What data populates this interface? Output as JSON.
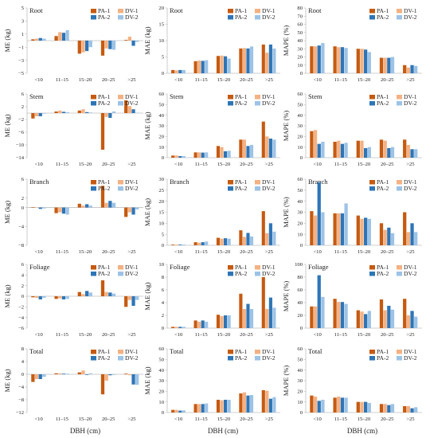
{
  "figure": {
    "x_axis_title": "DBH (cm)"
  },
  "legend_labels": [
    "PA-1",
    "DV-1",
    "PA-2",
    "DV-2"
  ],
  "colors": {
    "PA-1": "#c55a11",
    "DV-1": "#f4b183",
    "PA-2": "#2e75b6",
    "DV-2": "#9dc3e6",
    "axis": "#bfbfbf",
    "text": "#222222"
  },
  "chart_data": [
    {
      "type": "bar",
      "metric": "ME",
      "ylabel": "ME (kg)",
      "title": "Root",
      "categories": [
        "<10",
        "11–15",
        "15–20",
        "20–25",
        ">25"
      ],
      "ylim": [
        -5,
        5
      ],
      "yticks": [
        -5,
        -3,
        -1,
        1,
        3,
        5
      ],
      "grid": false,
      "legend": "top-right",
      "series": [
        {
          "name": "PA-1",
          "values": [
            0.2,
            0.7,
            -2.0,
            -2.3,
            0.1
          ]
        },
        {
          "name": "DV-1",
          "values": [
            0.3,
            1.3,
            -1.8,
            -1.2,
            0.6
          ]
        },
        {
          "name": "PA-2",
          "values": [
            0.4,
            1.2,
            -1.6,
            -1.3,
            -0.8
          ]
        },
        {
          "name": "DV-2",
          "values": [
            0.3,
            1.6,
            -1.0,
            -1.4,
            -0.2
          ]
        }
      ]
    },
    {
      "type": "bar",
      "metric": "MAE",
      "ylabel": "MAE (kg)",
      "title": "Root",
      "categories": [
        "<10",
        "11–15",
        "15–20",
        "20–25",
        ">25"
      ],
      "ylim": [
        0,
        20
      ],
      "yticks": [
        0,
        5,
        10,
        15,
        20
      ],
      "grid": false,
      "legend": "top-right",
      "series": [
        {
          "name": "PA-1",
          "values": [
            1.0,
            3.7,
            5.3,
            7.6,
            8.8
          ]
        },
        {
          "name": "DV-1",
          "values": [
            0.9,
            3.9,
            5.4,
            7.7,
            6.3
          ]
        },
        {
          "name": "PA-2",
          "values": [
            1.0,
            3.8,
            5.2,
            7.6,
            8.8
          ]
        },
        {
          "name": "DV-2",
          "values": [
            1.0,
            4.0,
            4.5,
            8.2,
            7.6
          ]
        }
      ]
    },
    {
      "type": "bar",
      "metric": "MAPE",
      "ylabel": "MAPE (%)",
      "title": "Root",
      "categories": [
        "<10",
        "11–15",
        "15–20",
        "20–25",
        ">25"
      ],
      "ylim": [
        0,
        80
      ],
      "yticks": [
        0,
        10,
        20,
        30,
        40,
        50,
        60,
        70,
        80
      ],
      "grid": false,
      "legend": "top-right",
      "series": [
        {
          "name": "PA-1",
          "values": [
            33,
            33,
            30,
            19,
            10
          ]
        },
        {
          "name": "DV-1",
          "values": [
            33,
            32,
            30,
            19,
            7
          ]
        },
        {
          "name": "PA-2",
          "values": [
            34,
            32,
            29,
            19,
            10
          ]
        },
        {
          "name": "DV-2",
          "values": [
            37,
            31,
            26,
            20,
            9
          ]
        }
      ]
    },
    {
      "type": "bar",
      "metric": "ME",
      "ylabel": "ME (kg)",
      "title": "Stem",
      "categories": [
        "<10",
        "11–15",
        "15–20",
        "20–25",
        ">25"
      ],
      "ylim": [
        -14,
        6
      ],
      "yticks": [
        -14,
        -10,
        -6,
        -2,
        2,
        6
      ],
      "grid": false,
      "legend": "top-right",
      "series": [
        {
          "name": "PA-1",
          "values": [
            -1.7,
            0.5,
            0.8,
            -11.5,
            4.0
          ]
        },
        {
          "name": "DV-1",
          "values": [
            -1.0,
            0.8,
            1.2,
            -1.2,
            2.2
          ]
        },
        {
          "name": "PA-2",
          "values": [
            -1.0,
            0.4,
            0.3,
            -1.5,
            1.2
          ]
        },
        {
          "name": "DV-2",
          "values": [
            -0.2,
            0.3,
            0.2,
            0.5,
            0.1
          ]
        }
      ]
    },
    {
      "type": "bar",
      "metric": "MAE",
      "ylabel": "MAE (kg)",
      "title": "Stem",
      "categories": [
        "<10",
        "11–15",
        "15–20",
        "20–25",
        ">25"
      ],
      "ylim": [
        0,
        60
      ],
      "yticks": [
        0,
        10,
        20,
        30,
        40,
        50,
        60
      ],
      "grid": false,
      "legend": "top-right",
      "series": [
        {
          "name": "PA-1",
          "values": [
            2.0,
            5.0,
            11.0,
            17.0,
            34.0
          ]
        },
        {
          "name": "DV-1",
          "values": [
            2.1,
            5.0,
            10.0,
            17.0,
            20.0
          ]
        },
        {
          "name": "PA-2",
          "values": [
            1.5,
            4.8,
            6.0,
            11.0,
            18.0
          ]
        },
        {
          "name": "DV-2",
          "values": [
            1.5,
            5.0,
            6.5,
            12.0,
            17.0
          ]
        }
      ]
    },
    {
      "type": "bar",
      "metric": "MAPE",
      "ylabel": "MAPE (%)",
      "title": "Stem",
      "categories": [
        "<10",
        "11–15",
        "15–20",
        "20–25",
        ">25"
      ],
      "ylim": [
        0,
        60
      ],
      "yticks": [
        0,
        10,
        20,
        30,
        40,
        50,
        60
      ],
      "grid": false,
      "legend": "top-right",
      "series": [
        {
          "name": "PA-1",
          "values": [
            25,
            15,
            16,
            17,
            17
          ]
        },
        {
          "name": "DV-1",
          "values": [
            26,
            16,
            16,
            16,
            12
          ]
        },
        {
          "name": "PA-2",
          "values": [
            13,
            13,
            9,
            9,
            8
          ]
        },
        {
          "name": "DV-2",
          "values": [
            15,
            14,
            10,
            10,
            8
          ]
        }
      ]
    },
    {
      "type": "bar",
      "metric": "ME",
      "ylabel": "ME (kg)",
      "title": "Branch",
      "categories": [
        "<10",
        "11–15",
        "15–20",
        "20–25",
        ">25"
      ],
      "ylim": [
        -8,
        6
      ],
      "yticks": [
        -8,
        -4,
        0,
        2,
        6
      ],
      "grid": false,
      "legend": "top-right",
      "series": [
        {
          "name": "PA-1",
          "values": [
            0.1,
            -1.2,
            0.8,
            4.6,
            -2.0
          ]
        },
        {
          "name": "DV-1",
          "values": [
            0.0,
            -1.0,
            0.4,
            1.0,
            -1.0
          ]
        },
        {
          "name": "PA-2",
          "values": [
            -0.3,
            -1.3,
            0.7,
            1.4,
            -1.5
          ]
        },
        {
          "name": "DV-2",
          "values": [
            -0.2,
            -1.5,
            0.4,
            1.0,
            -0.4
          ]
        }
      ]
    },
    {
      "type": "bar",
      "metric": "MAE",
      "ylabel": "MAE (kg)",
      "title": "Branch",
      "categories": [
        "<10",
        "11–15",
        "15–20",
        "20–25",
        ">25"
      ],
      "ylim": [
        0,
        30
      ],
      "yticks": [
        0,
        5,
        10,
        15,
        20,
        25,
        30
      ],
      "grid": false,
      "legend": "top-right",
      "series": [
        {
          "name": "PA-1",
          "values": [
            0.3,
            1.4,
            3.4,
            6.8,
            15.5
          ]
        },
        {
          "name": "DV-1",
          "values": [
            0.3,
            1.2,
            3.0,
            3.8,
            5.5
          ]
        },
        {
          "name": "PA-2",
          "values": [
            0.3,
            1.4,
            3.2,
            5.6,
            10.0
          ]
        },
        {
          "name": "DV-2",
          "values": [
            0.3,
            1.7,
            3.0,
            4.0,
            6.2
          ]
        }
      ]
    },
    {
      "type": "bar",
      "metric": "MAPE",
      "ylabel": "MAPE (%)",
      "title": "Branch",
      "categories": [
        "<10",
        "11–15",
        "15–20",
        "20–25",
        ">25"
      ],
      "ylim": [
        0,
        60
      ],
      "yticks": [
        0,
        10,
        20,
        30,
        40,
        50,
        60
      ],
      "grid": false,
      "legend": "top-right",
      "series": [
        {
          "name": "PA-1",
          "values": [
            31,
            29,
            27,
            20,
            30
          ]
        },
        {
          "name": "DV-1",
          "values": [
            27,
            29,
            24,
            14,
            12
          ]
        },
        {
          "name": "PA-2",
          "values": [
            57,
            29,
            25,
            16,
            20
          ]
        },
        {
          "name": "DV-2",
          "values": [
            30,
            38,
            24,
            11,
            12
          ]
        }
      ]
    },
    {
      "type": "bar",
      "metric": "ME",
      "ylabel": "ME (kg)",
      "title": "Foliage",
      "categories": [
        "<10",
        "11–15",
        "15–20",
        "20–25",
        ">25"
      ],
      "ylim": [
        -6,
        6
      ],
      "yticks": [
        -6,
        -4,
        -2,
        0,
        2,
        4,
        6
      ],
      "grid": false,
      "legend": "top-right",
      "series": [
        {
          "name": "PA-1",
          "values": [
            -0.2,
            -0.5,
            0.8,
            3.0,
            -2.0
          ]
        },
        {
          "name": "DV-1",
          "values": [
            -0.3,
            -0.4,
            0.4,
            0.8,
            -0.7
          ]
        },
        {
          "name": "PA-2",
          "values": [
            -0.6,
            -0.6,
            1.0,
            0.7,
            -1.8
          ]
        },
        {
          "name": "DV-2",
          "values": [
            -0.3,
            -0.5,
            0.7,
            0.5,
            -0.7
          ]
        }
      ]
    },
    {
      "type": "bar",
      "metric": "MAE",
      "ylabel": "MAE (kg)",
      "title": "Foliage",
      "categories": [
        "<10",
        "11–15",
        "15–20",
        "20–25",
        ">25"
      ],
      "ylim": [
        0,
        10
      ],
      "yticks": [
        0,
        2,
        4,
        6,
        8,
        10
      ],
      "grid": false,
      "legend": "top-right",
      "series": [
        {
          "name": "PA-1",
          "values": [
            0.2,
            1.2,
            2.1,
            5.4,
            8.0
          ]
        },
        {
          "name": "DV-1",
          "values": [
            0.2,
            1.0,
            1.9,
            3.0,
            3.0
          ]
        },
        {
          "name": "PA-2",
          "values": [
            0.2,
            1.2,
            2.0,
            3.8,
            4.8
          ]
        },
        {
          "name": "DV-2",
          "values": [
            0.2,
            1.0,
            2.0,
            3.0,
            3.2
          ]
        }
      ]
    },
    {
      "type": "bar",
      "metric": "MAPE",
      "ylabel": "MAPE (%)",
      "title": "Foliage",
      "categories": [
        "<10",
        "11–15",
        "15–20",
        "20–25",
        ">25"
      ],
      "ylim": [
        0,
        100
      ],
      "yticks": [
        0,
        20,
        40,
        60,
        80,
        100
      ],
      "grid": false,
      "legend": "top-right",
      "series": [
        {
          "name": "PA-1",
          "values": [
            34,
            46,
            28,
            45,
            46
          ]
        },
        {
          "name": "DV-1",
          "values": [
            34,
            41,
            26,
            28,
            20
          ]
        },
        {
          "name": "PA-2",
          "values": [
            83,
            41,
            22,
            35,
            27
          ]
        },
        {
          "name": "DV-2",
          "values": [
            49,
            38,
            27,
            29,
            18
          ]
        }
      ]
    },
    {
      "type": "bar",
      "metric": "ME",
      "ylabel": "ME (kg)",
      "title": "Total",
      "categories": [
        "<10",
        "11–15",
        "15–20",
        "20–25",
        ">25"
      ],
      "ylim": [
        -12,
        8
      ],
      "yticks": [
        -12,
        -8,
        -4,
        0,
        4,
        8
      ],
      "grid": false,
      "legend": "top-right",
      "series": [
        {
          "name": "PA-1",
          "values": [
            -2.4,
            0.3,
            0.6,
            -6.3,
            0.2
          ]
        },
        {
          "name": "DV-1",
          "values": [
            -1.5,
            0.3,
            1.2,
            -2.0,
            -0.3
          ]
        },
        {
          "name": "PA-2",
          "values": [
            -1.5,
            0.2,
            -0.2,
            -0.3,
            -3.2
          ]
        },
        {
          "name": "DV-2",
          "values": [
            -0.8,
            0.2,
            0.3,
            -0.2,
            -3.3
          ]
        }
      ]
    },
    {
      "type": "bar",
      "metric": "MAE",
      "ylabel": "MAE (kg)",
      "title": "Total",
      "categories": [
        "<10",
        "11–15",
        "15–20",
        "20–25",
        ">25"
      ],
      "ylim": [
        0,
        60
      ],
      "yticks": [
        0,
        10,
        20,
        30,
        40,
        50,
        60
      ],
      "grid": false,
      "legend": "top-right",
      "series": [
        {
          "name": "PA-1",
          "values": [
            2.5,
            8.0,
            12.0,
            18.0,
            21.0
          ]
        },
        {
          "name": "DV-1",
          "values": [
            2.5,
            8.0,
            11.5,
            19.0,
            20.5
          ]
        },
        {
          "name": "PA-2",
          "values": [
            1.8,
            8.0,
            12.0,
            16.0,
            13.0
          ]
        },
        {
          "name": "DV-2",
          "values": [
            2.0,
            8.5,
            12.0,
            16.5,
            14.5
          ]
        }
      ]
    },
    {
      "type": "bar",
      "metric": "MAPE",
      "ylabel": "MAPE (%)",
      "title": "Total",
      "categories": [
        "<10",
        "11–15",
        "15–20",
        "20–25",
        ">25"
      ],
      "ylim": [
        0,
        60
      ],
      "yticks": [
        0,
        10,
        20,
        30,
        40,
        50,
        60
      ],
      "grid": false,
      "legend": "top-right",
      "series": [
        {
          "name": "PA-1",
          "values": [
            16,
            14,
            10,
            8,
            6
          ]
        },
        {
          "name": "DV-1",
          "values": [
            15,
            15,
            10,
            8,
            6
          ]
        },
        {
          "name": "PA-2",
          "values": [
            11,
            14,
            10,
            7,
            4
          ]
        },
        {
          "name": "DV-2",
          "values": [
            12,
            14,
            9,
            8,
            5
          ]
        }
      ]
    }
  ]
}
